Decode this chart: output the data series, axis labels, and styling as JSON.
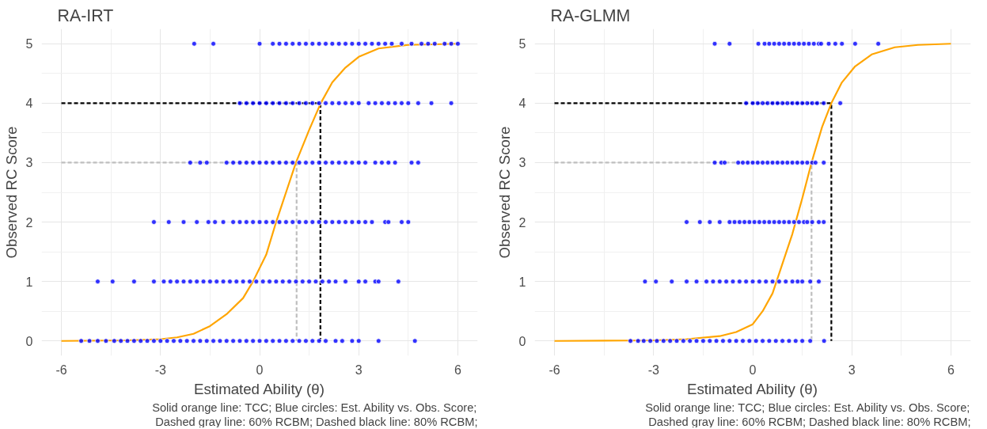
{
  "chart_data": [
    {
      "type": "scatter",
      "title": "RA-IRT",
      "xlabel": "Estimated Ability (θ)",
      "ylabel": "Observed RC Score",
      "xlim": [
        -6.6,
        6.6
      ],
      "ylim": [
        -0.25,
        5.25
      ],
      "xticks": [
        -6,
        -3,
        0,
        3,
        6
      ],
      "yticks": [
        0,
        1,
        2,
        3,
        4,
        5
      ],
      "grid": true,
      "annotations": [
        "Solid orange line: TCC; Blue circles: Est. Ability vs. Obs. Score;",
        "Dashed gray line: 60% RCBM; Dashed black line: 80% RCBM;"
      ],
      "series": [
        {
          "marker": "circle",
          "color": "#0000ff",
          "x": [
            -1.98,
            -1.4,
            0.0,
            0.4,
            0.6,
            0.8,
            1.0,
            1.2,
            1.4,
            1.6,
            1.8,
            2.0,
            2.2,
            2.4,
            2.6,
            2.8,
            3.0,
            3.2,
            3.4,
            3.6,
            3.8,
            4.0,
            4.3,
            4.6,
            4.9,
            5.1,
            5.3,
            5.6,
            5.8,
            6.0
          ],
          "values": [
            5,
            5,
            5,
            5,
            5,
            5,
            5,
            5,
            5,
            5,
            5,
            5,
            5,
            5,
            5,
            5,
            5,
            5,
            5,
            5,
            5,
            5,
            5,
            5,
            5,
            5,
            5,
            5,
            5,
            5
          ]
        },
        {
          "marker": "circle",
          "color": "#0000ff",
          "x": [
            -0.6,
            -0.4,
            -0.2,
            0.0,
            0.2,
            0.4,
            0.6,
            0.8,
            1.0,
            1.2,
            1.4,
            1.6,
            1.8,
            2.0,
            2.2,
            2.4,
            2.6,
            2.8,
            3.0,
            3.3,
            3.5,
            3.7,
            3.9,
            4.1,
            4.3,
            4.5,
            4.8,
            5.2,
            5.8
          ],
          "values": [
            4,
            4,
            4,
            4,
            4,
            4,
            4,
            4,
            4,
            4,
            4,
            4,
            4,
            4,
            4,
            4,
            4,
            4,
            4,
            4,
            4,
            4,
            4,
            4,
            4,
            4,
            4,
            4,
            4
          ]
        },
        {
          "marker": "circle",
          "color": "#0000ff",
          "x": [
            -2.1,
            -1.8,
            -1.6,
            -1.0,
            -0.8,
            -0.6,
            -0.4,
            -0.2,
            0.0,
            0.2,
            0.4,
            0.6,
            0.8,
            1.0,
            1.2,
            1.4,
            1.6,
            1.8,
            2.0,
            2.2,
            2.4,
            2.6,
            2.8,
            3.0,
            3.2,
            3.5,
            3.7,
            3.9,
            4.1,
            4.6,
            4.8
          ],
          "values": [
            3,
            3,
            3,
            3,
            3,
            3,
            3,
            3,
            3,
            3,
            3,
            3,
            3,
            3,
            3,
            3,
            3,
            3,
            3,
            3,
            3,
            3,
            3,
            3,
            3,
            3,
            3,
            3,
            3,
            3,
            3
          ]
        },
        {
          "marker": "circle",
          "color": "#0000ff",
          "x": [
            -3.2,
            -2.75,
            -2.3,
            -1.9,
            -1.55,
            -1.35,
            -1.1,
            -0.8,
            -0.6,
            -0.4,
            -0.2,
            0.0,
            0.2,
            0.4,
            0.6,
            0.8,
            1.0,
            1.2,
            1.4,
            1.6,
            1.8,
            2.0,
            2.2,
            2.4,
            2.6,
            2.8,
            3.0,
            3.2,
            3.4,
            3.8,
            3.9,
            4.3,
            4.5
          ],
          "values": [
            2,
            2,
            2,
            2,
            2,
            2,
            2,
            2,
            2,
            2,
            2,
            2,
            2,
            2,
            2,
            2,
            2,
            2,
            2,
            2,
            2,
            2,
            2,
            2,
            2,
            2,
            2,
            2,
            2,
            2,
            2,
            2,
            2
          ]
        },
        {
          "marker": "circle",
          "color": "#0000ff",
          "x": [
            -4.9,
            -4.45,
            -3.8,
            -3.2,
            -2.9,
            -2.7,
            -2.5,
            -2.3,
            -2.1,
            -1.9,
            -1.7,
            -1.5,
            -1.3,
            -1.1,
            -0.9,
            -0.7,
            -0.5,
            -0.3,
            -0.1,
            0.1,
            0.3,
            0.5,
            0.7,
            0.9,
            1.1,
            1.3,
            1.5,
            1.7,
            1.9,
            2.1,
            2.3,
            2.6,
            3.0,
            3.2,
            3.5,
            3.6,
            4.2
          ],
          "values": [
            1,
            1,
            1,
            1,
            1,
            1,
            1,
            1,
            1,
            1,
            1,
            1,
            1,
            1,
            1,
            1,
            1,
            1,
            1,
            1,
            1,
            1,
            1,
            1,
            1,
            1,
            1,
            1,
            1,
            1,
            1,
            1,
            1,
            1,
            1,
            1,
            1
          ]
        },
        {
          "marker": "circle",
          "color": "#0000ff",
          "x": [
            -5.4,
            -5.15,
            -4.9,
            -4.65,
            -4.4,
            -4.2,
            -4.0,
            -3.8,
            -3.6,
            -3.4,
            -3.2,
            -3.0,
            -2.8,
            -2.6,
            -2.4,
            -2.2,
            -2.0,
            -1.8,
            -1.6,
            -1.4,
            -1.2,
            -1.0,
            -0.8,
            -0.6,
            -0.4,
            -0.2,
            0.0,
            0.2,
            0.4,
            0.6,
            0.8,
            1.0,
            1.2,
            1.4,
            1.6,
            1.8,
            2.0,
            2.3,
            2.5,
            2.8,
            3.0,
            3.6,
            4.7
          ],
          "values": [
            0,
            0,
            0,
            0,
            0,
            0,
            0,
            0,
            0,
            0,
            0,
            0,
            0,
            0,
            0,
            0,
            0,
            0,
            0,
            0,
            0,
            0,
            0,
            0,
            0,
            0,
            0,
            0,
            0,
            0,
            0,
            0,
            0,
            0,
            0,
            0,
            0,
            0,
            0,
            0,
            0,
            0,
            0
          ]
        },
        {
          "type": "line",
          "color": "#bebebe",
          "line_style": "dashed",
          "x": [
            -6,
            1.12,
            1.12
          ],
          "values": [
            3,
            3,
            0
          ]
        },
        {
          "type": "line",
          "color": "#000000",
          "line_style": "dashed",
          "x": [
            -6,
            1.84,
            1.84
          ],
          "values": [
            4,
            4,
            0
          ]
        },
        {
          "type": "line",
          "color": "#ffa500",
          "line_style": "solid",
          "x": [
            -6,
            -4,
            -3,
            -2.5,
            -2,
            -1.5,
            -1,
            -0.5,
            -0.2,
            0.2,
            0.5,
            0.8,
            1.1,
            1.5,
            1.85,
            2.2,
            2.6,
            3,
            3.6,
            4.5,
            6
          ],
          "values": [
            0,
            0.01,
            0.03,
            0.06,
            0.12,
            0.25,
            0.45,
            0.72,
            1.0,
            1.45,
            2.0,
            2.5,
            3.0,
            3.55,
            4.0,
            4.35,
            4.6,
            4.78,
            4.92,
            4.98,
            5
          ]
        }
      ]
    },
    {
      "type": "scatter",
      "title": "RA-GLMM",
      "xlabel": "Estimated Ability (θ)",
      "ylabel": "Observed RC Score",
      "xlim": [
        -6.6,
        6.6
      ],
      "ylim": [
        -0.25,
        5.25
      ],
      "xticks": [
        -6,
        -3,
        0,
        3,
        6
      ],
      "yticks": [
        0,
        1,
        2,
        3,
        4,
        5
      ],
      "grid": true,
      "annotations": [
        "Solid orange line: TCC; Blue circles: Est. Ability vs. Obs. Score;",
        "Dashed gray line: 60% RCBM; Dashed black line: 80% RCBM;"
      ],
      "series": [
        {
          "marker": "circle",
          "color": "#0000ff",
          "x": [
            -1.15,
            -0.7,
            0.17,
            0.36,
            0.5,
            0.65,
            0.8,
            0.95,
            1.1,
            1.25,
            1.4,
            1.55,
            1.7,
            1.85,
            2.0,
            2.07,
            2.3,
            2.5,
            2.7,
            3.1,
            3.8
          ],
          "values": [
            5,
            5,
            5,
            5,
            5,
            5,
            5,
            5,
            5,
            5,
            5,
            5,
            5,
            5,
            5,
            5,
            5,
            5,
            5,
            5,
            5
          ]
        },
        {
          "marker": "circle",
          "color": "#0000ff",
          "x": [
            -0.2,
            0.0,
            0.15,
            0.3,
            0.45,
            0.6,
            0.75,
            0.9,
            1.05,
            1.2,
            1.35,
            1.5,
            1.65,
            1.8,
            1.95,
            2.15,
            2.65
          ],
          "values": [
            4,
            4,
            4,
            4,
            4,
            4,
            4,
            4,
            4,
            4,
            4,
            4,
            4,
            4,
            4,
            4,
            4
          ]
        },
        {
          "marker": "circle",
          "color": "#0000ff",
          "x": [
            -1.15,
            -0.95,
            -0.85,
            -0.44,
            -0.3,
            -0.15,
            0.0,
            0.15,
            0.3,
            0.45,
            0.6,
            0.75,
            0.9,
            1.05,
            1.2,
            1.35,
            1.5,
            1.65,
            1.8,
            1.9,
            2.15
          ],
          "values": [
            3,
            3,
            3,
            3,
            3,
            3,
            3,
            3,
            3,
            3,
            3,
            3,
            3,
            3,
            3,
            3,
            3,
            3,
            3,
            3,
            3
          ]
        },
        {
          "marker": "circle",
          "color": "#0000ff",
          "x": [
            -2.0,
            -1.6,
            -1.3,
            -1.0,
            -0.7,
            -0.55,
            -0.4,
            -0.25,
            -0.1,
            0.05,
            0.2,
            0.35,
            0.5,
            0.65,
            0.8,
            0.95,
            1.1,
            1.25,
            1.4,
            1.55,
            1.65,
            1.8,
            2.0,
            2.15
          ],
          "values": [
            2,
            2,
            2,
            2,
            2,
            2,
            2,
            2,
            2,
            2,
            2,
            2,
            2,
            2,
            2,
            2,
            2,
            2,
            2,
            2,
            2,
            2,
            2,
            2
          ]
        },
        {
          "marker": "circle",
          "color": "#0000ff",
          "x": [
            -3.26,
            -2.93,
            -2.45,
            -2.0,
            -1.7,
            -1.4,
            -1.2,
            -1.0,
            -0.8,
            -0.6,
            -0.4,
            -0.2,
            0.0,
            0.2,
            0.4,
            0.6,
            0.8,
            1.0,
            1.2,
            1.36,
            1.5,
            1.74,
            2.0
          ],
          "values": [
            1,
            1,
            1,
            1,
            1,
            1,
            1,
            1,
            1,
            1,
            1,
            1,
            1,
            1,
            1,
            1,
            1,
            1,
            1,
            1,
            1,
            1,
            1
          ]
        },
        {
          "marker": "circle",
          "color": "#0000ff",
          "x": [
            -3.7,
            -3.47,
            -3.3,
            -3.1,
            -2.9,
            -2.7,
            -2.5,
            -2.3,
            -2.1,
            -1.9,
            -1.7,
            -1.5,
            -1.3,
            -1.1,
            -0.9,
            -0.7,
            -0.5,
            -0.3,
            -0.1,
            0.1,
            0.3,
            0.5,
            0.7,
            0.9,
            1.1,
            1.3,
            1.5,
            1.74,
            2.16
          ],
          "values": [
            0,
            0,
            0,
            0,
            0,
            0,
            0,
            0,
            0,
            0,
            0,
            0,
            0,
            0,
            0,
            0,
            0,
            0,
            0,
            0,
            0,
            0,
            0,
            0,
            0,
            0,
            0,
            0,
            0
          ]
        },
        {
          "type": "line",
          "color": "#bebebe",
          "line_style": "dashed",
          "x": [
            -6,
            1.78,
            1.78
          ],
          "values": [
            3,
            3,
            0
          ]
        },
        {
          "type": "line",
          "color": "#000000",
          "line_style": "dashed",
          "x": [
            -6,
            2.38,
            2.38
          ],
          "values": [
            4,
            4,
            0
          ]
        },
        {
          "type": "line",
          "color": "#ffa500",
          "line_style": "solid",
          "x": [
            -6,
            -3,
            -2,
            -1,
            -0.5,
            0,
            0.3,
            0.6,
            0.9,
            1.2,
            1.5,
            1.78,
            2.1,
            2.38,
            2.7,
            3.1,
            3.6,
            4.3,
            5,
            6
          ],
          "values": [
            0,
            0.01,
            0.03,
            0.08,
            0.15,
            0.28,
            0.5,
            0.8,
            1.3,
            1.8,
            2.4,
            3.0,
            3.6,
            4.0,
            4.35,
            4.62,
            4.82,
            4.94,
            4.98,
            5
          ]
        }
      ]
    }
  ]
}
